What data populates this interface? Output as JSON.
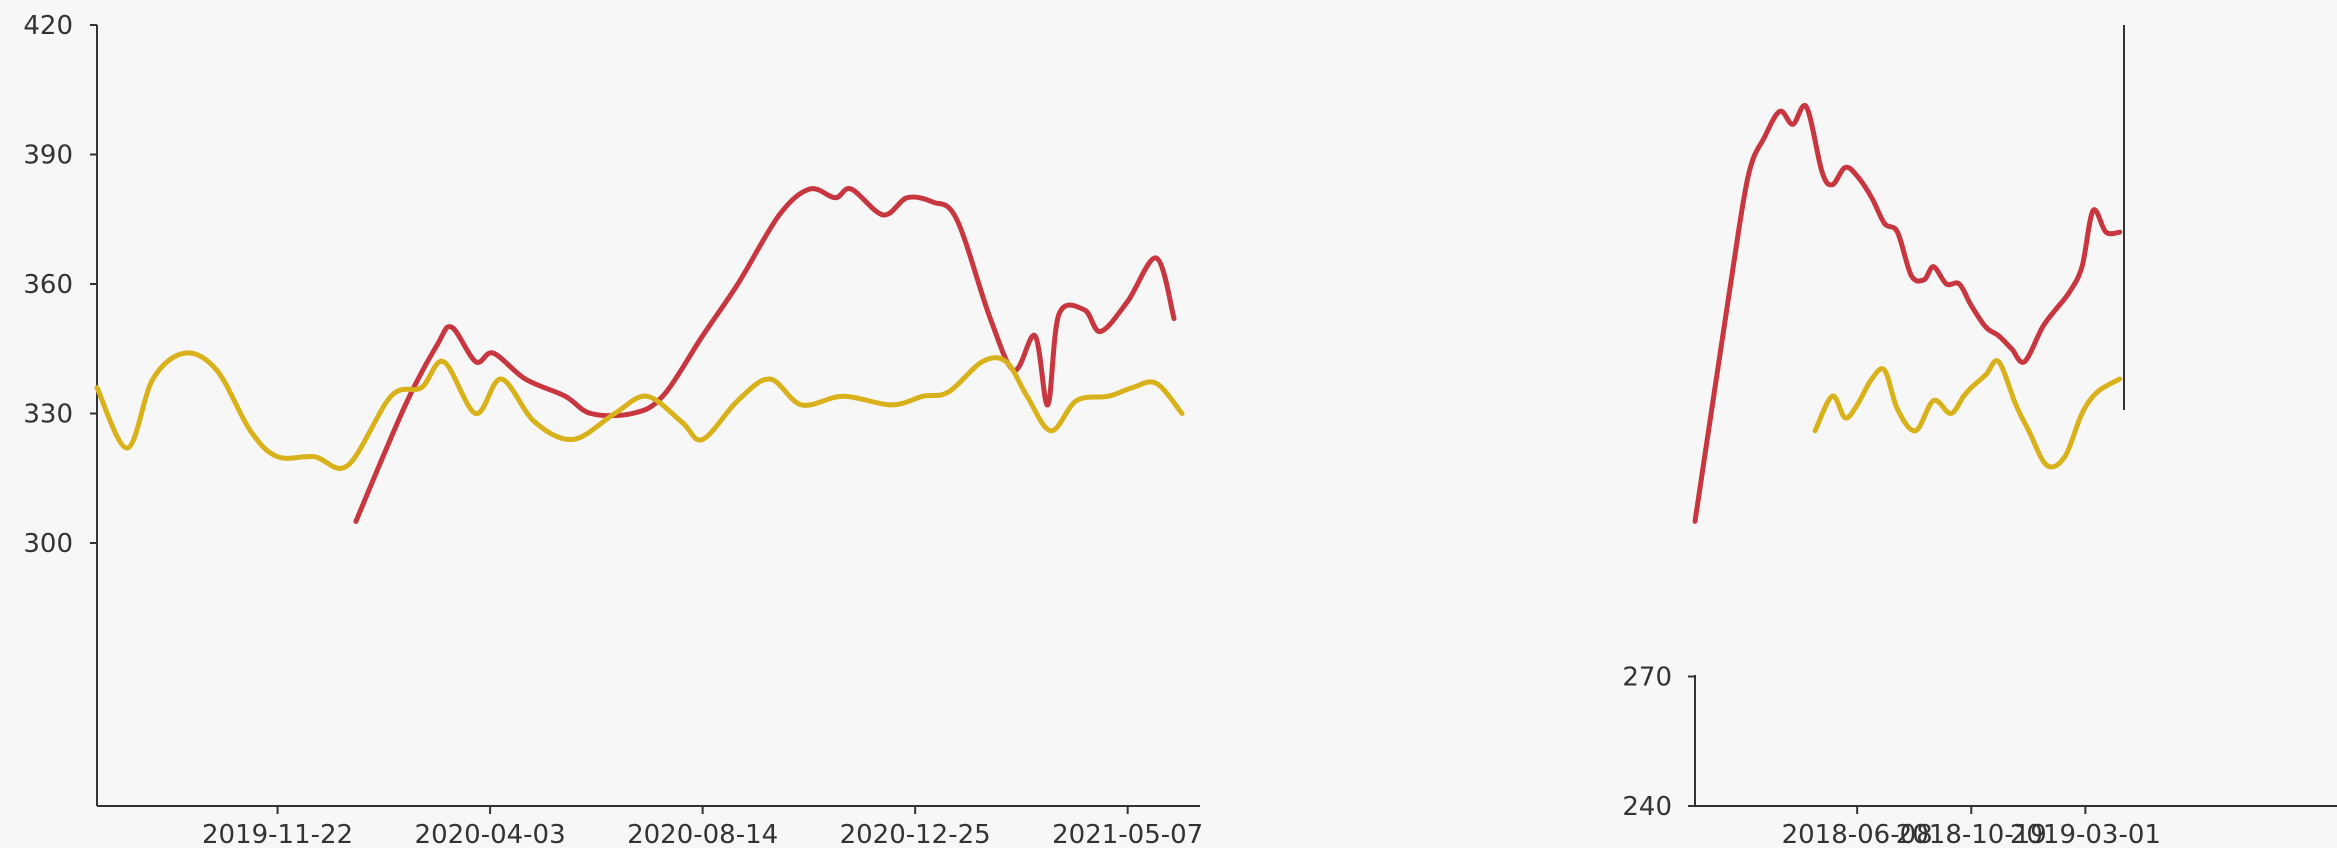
{
  "chart_data": [
    {
      "type": "line",
      "panel": "left",
      "y_ticks": [
        "420",
        "390",
        "360",
        "330",
        "300"
      ],
      "ylim": [
        300,
        420
      ],
      "x_ticks": [
        "2019-11-22",
        "2020-04-03",
        "2020-08-14",
        "2020-12-25",
        "2021-05-07"
      ],
      "x_range": [
        "2019-08-01",
        "2021-06-15"
      ],
      "series": [
        {
          "color": "#c8363f",
          "points": [
            [
              "2020-01-10",
              305
            ],
            [
              "2020-02-10",
              332
            ],
            [
              "2020-03-01",
              346
            ],
            [
              "2020-03-10",
              350
            ],
            [
              "2020-03-25",
              342
            ],
            [
              "2020-04-05",
              344
            ],
            [
              "2020-04-25",
              338
            ],
            [
              "2020-05-20",
              334
            ],
            [
              "2020-06-05",
              330
            ],
            [
              "2020-07-01",
              330
            ],
            [
              "2020-07-20",
              334
            ],
            [
              "2020-08-14",
              348
            ],
            [
              "2020-09-05",
              360
            ],
            [
              "2020-10-01",
              376
            ],
            [
              "2020-10-20",
              382
            ],
            [
              "2020-11-05",
              380
            ],
            [
              "2020-11-15",
              382
            ],
            [
              "2020-12-05",
              376
            ],
            [
              "2020-12-20",
              380
            ],
            [
              "2021-01-05",
              379
            ],
            [
              "2021-01-20",
              375
            ],
            [
              "2021-02-10",
              352
            ],
            [
              "2021-02-25",
              340
            ],
            [
              "2021-03-10",
              348
            ],
            [
              "2021-03-18",
              332
            ],
            [
              "2021-03-25",
              353
            ],
            [
              "2021-04-10",
              354
            ],
            [
              "2021-04-20",
              349
            ],
            [
              "2021-05-07",
              356
            ],
            [
              "2021-05-25",
              366
            ],
            [
              "2021-06-05",
              352
            ]
          ]
        },
        {
          "color": "#d9b11a",
          "points": [
            [
              "2019-08-01",
              336
            ],
            [
              "2019-08-20",
              322
            ],
            [
              "2019-09-05",
              338
            ],
            [
              "2019-09-25",
              344
            ],
            [
              "2019-10-15",
              340
            ],
            [
              "2019-11-05",
              326
            ],
            [
              "2019-11-22",
              320
            ],
            [
              "2019-12-15",
              320
            ],
            [
              "2020-01-05",
              318
            ],
            [
              "2020-02-01",
              334
            ],
            [
              "2020-02-20",
              336
            ],
            [
              "2020-03-05",
              342
            ],
            [
              "2020-03-25",
              330
            ],
            [
              "2020-04-10",
              338
            ],
            [
              "2020-05-01",
              328
            ],
            [
              "2020-05-25",
              324
            ],
            [
              "2020-06-20",
              330
            ],
            [
              "2020-07-10",
              334
            ],
            [
              "2020-08-01",
              328
            ],
            [
              "2020-08-14",
              324
            ],
            [
              "2020-09-05",
              333
            ],
            [
              "2020-09-25",
              338
            ],
            [
              "2020-10-15",
              332
            ],
            [
              "2020-11-10",
              334
            ],
            [
              "2020-12-10",
              332
            ],
            [
              "2020-12-30",
              334
            ],
            [
              "2021-01-15",
              335
            ],
            [
              "2021-02-05",
              342
            ],
            [
              "2021-02-20",
              342
            ],
            [
              "2021-03-05",
              334
            ],
            [
              "2021-03-20",
              326
            ],
            [
              "2021-04-05",
              333
            ],
            [
              "2021-04-25",
              334
            ],
            [
              "2021-05-10",
              336
            ],
            [
              "2021-05-25",
              337
            ],
            [
              "2021-06-10",
              330
            ]
          ]
        }
      ]
    },
    {
      "type": "line",
      "panel": "right",
      "y_ticks": [
        "270",
        "240"
      ],
      "ylim": [
        240,
        420
      ],
      "x_ticks": [
        "2018-06-08",
        "2018-10-19",
        "2019-03-01"
      ],
      "x_range": [
        "2017-12-01",
        "2019-04-15"
      ],
      "series": [
        {
          "color": "#c8363f",
          "points": [
            [
              "2017-12-01",
              305
            ],
            [
              "2018-01-10",
              358
            ],
            [
              "2018-02-01",
              385
            ],
            [
              "2018-02-20",
              394
            ],
            [
              "2018-03-10",
              400
            ],
            [
              "2018-03-25",
              397
            ],
            [
              "2018-04-10",
              401
            ],
            [
              "2018-04-28",
              386
            ],
            [
              "2018-05-10",
              383
            ],
            [
              "2018-05-25",
              387
            ],
            [
              "2018-06-08",
              385
            ],
            [
              "2018-06-25",
              380
            ],
            [
              "2018-07-10",
              374
            ],
            [
              "2018-07-25",
              372
            ],
            [
              "2018-08-10",
              362
            ],
            [
              "2018-08-25",
              361
            ],
            [
              "2018-09-05",
              364
            ],
            [
              "2018-09-20",
              360
            ],
            [
              "2018-10-05",
              360
            ],
            [
              "2018-10-19",
              355
            ],
            [
              "2018-11-05",
              350
            ],
            [
              "2018-11-20",
              348
            ],
            [
              "2018-12-05",
              345
            ],
            [
              "2018-12-20",
              342
            ],
            [
              "2019-01-10",
              350
            ],
            [
              "2019-01-25",
              354
            ],
            [
              "2019-02-10",
              358
            ],
            [
              "2019-02-25",
              364
            ],
            [
              "2019-03-10",
              377
            ],
            [
              "2019-03-25",
              372
            ],
            [
              "2019-04-10",
              372
            ]
          ]
        },
        {
          "color": "#d9b11a",
          "points": [
            [
              "2018-04-20",
              326
            ],
            [
              "2018-05-10",
              334
            ],
            [
              "2018-05-25",
              329
            ],
            [
              "2018-06-08",
              332
            ],
            [
              "2018-06-25",
              338
            ],
            [
              "2018-07-10",
              340
            ],
            [
              "2018-07-25",
              331
            ],
            [
              "2018-08-15",
              326
            ],
            [
              "2018-09-05",
              333
            ],
            [
              "2018-09-25",
              330
            ],
            [
              "2018-10-10",
              334
            ],
            [
              "2018-10-19",
              336
            ],
            [
              "2018-11-05",
              339
            ],
            [
              "2018-11-20",
              342
            ],
            [
              "2018-12-10",
              332
            ],
            [
              "2018-12-25",
              326
            ],
            [
              "2019-01-15",
              318
            ],
            [
              "2019-02-05",
              320
            ],
            [
              "2019-02-25",
              330
            ],
            [
              "2019-03-15",
              335
            ],
            [
              "2019-04-10",
              338
            ]
          ]
        }
      ]
    }
  ]
}
